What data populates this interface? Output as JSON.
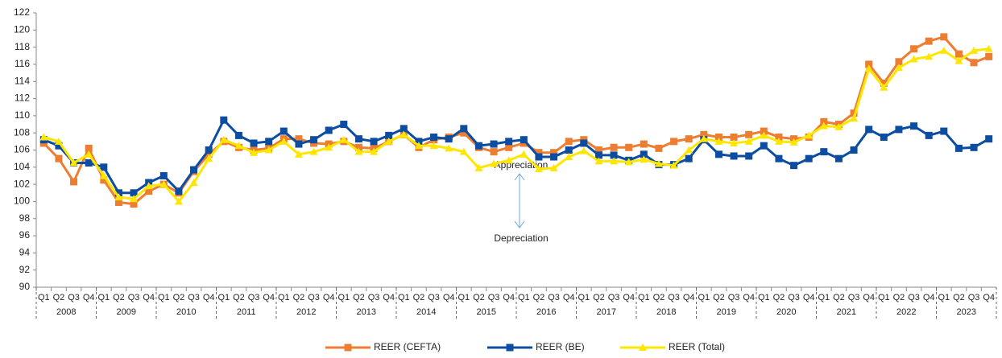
{
  "chart_data": {
    "type": "line",
    "categories": [
      "Q1",
      "Q2",
      "Q3",
      "Q4",
      "Q1",
      "Q2",
      "Q3",
      "Q4",
      "Q1",
      "Q2",
      "Q3",
      "Q4",
      "Q1",
      "Q2",
      "Q3",
      "Q4",
      "Q1",
      "Q2",
      "Q3",
      "Q4",
      "Q1",
      "Q2",
      "Q3",
      "Q4",
      "Q1",
      "Q2",
      "Q3",
      "Q4",
      "Q1",
      "Q2",
      "Q3",
      "Q4",
      "Q1",
      "Q2",
      "Q3",
      "Q4",
      "Q1",
      "Q2",
      "Q3",
      "Q4",
      "Q1",
      "Q2",
      "Q3",
      "Q4",
      "Q1",
      "Q2",
      "Q3",
      "Q4",
      "Q1",
      "Q2",
      "Q3",
      "Q4",
      "Q1",
      "Q2",
      "Q3",
      "Q4",
      "Q1",
      "Q2",
      "Q3",
      "Q4",
      "Q1",
      "Q2",
      "Q3",
      "Q4"
    ],
    "years": [
      "2008",
      "2009",
      "2010",
      "2011",
      "2012",
      "2013",
      "2014",
      "2015",
      "2016",
      "2017",
      "2018",
      "2019",
      "2020",
      "2021",
      "2022",
      "2023"
    ],
    "series": [
      {
        "name": "REER (CEFTA)",
        "color": "#ed7d31",
        "marker": "square",
        "values": [
          106.8,
          105.0,
          102.3,
          106.2,
          102.5,
          99.9,
          99.7,
          101.2,
          102.0,
          101.0,
          103.5,
          105.5,
          107.0,
          106.3,
          106.0,
          106.2,
          107.3,
          107.3,
          106.8,
          106.7,
          107.0,
          106.3,
          106.2,
          107.0,
          107.8,
          106.3,
          107.2,
          107.5,
          108.0,
          106.3,
          105.8,
          106.3,
          106.8,
          105.7,
          105.7,
          107.0,
          107.2,
          106.0,
          106.3,
          106.3,
          106.7,
          106.2,
          107.0,
          107.3,
          107.8,
          107.5,
          107.5,
          107.8,
          108.2,
          107.5,
          107.3,
          107.5,
          109.3,
          109.0,
          110.3,
          116.0,
          113.8,
          116.3,
          117.8,
          118.7,
          119.2,
          117.2,
          116.2,
          116.9
        ]
      },
      {
        "name": "REER (BE)",
        "color": "#0d4da1",
        "marker": "square",
        "values": [
          107.2,
          106.5,
          104.5,
          104.5,
          104.0,
          101.0,
          101.0,
          102.2,
          103.0,
          101.2,
          103.7,
          106.0,
          109.5,
          107.7,
          106.8,
          107.0,
          108.2,
          106.7,
          107.2,
          108.3,
          109.0,
          107.3,
          107.0,
          107.7,
          108.5,
          107.0,
          107.5,
          107.3,
          108.5,
          106.5,
          106.7,
          107.0,
          107.2,
          105.2,
          105.2,
          106.0,
          106.8,
          105.4,
          105.4,
          104.8,
          105.5,
          104.3,
          104.3,
          105.0,
          107.2,
          105.5,
          105.3,
          105.3,
          106.5,
          105.0,
          104.2,
          105.0,
          105.8,
          105.0,
          106.0,
          108.4,
          107.5,
          108.4,
          108.8,
          107.7,
          108.2,
          106.2,
          106.3,
          107.3
        ]
      },
      {
        "name": "REER (Total)",
        "color": "#ffe600",
        "marker": "triangle",
        "values": [
          107.5,
          107.0,
          104.5,
          105.5,
          103.0,
          100.5,
          100.3,
          101.8,
          102.0,
          100.0,
          102.2,
          105.0,
          107.2,
          106.5,
          105.7,
          106.0,
          107.0,
          105.5,
          105.8,
          106.3,
          107.2,
          105.8,
          105.8,
          107.0,
          107.8,
          106.5,
          106.5,
          106.2,
          105.8,
          103.9,
          104.4,
          104.8,
          105.5,
          103.8,
          103.9,
          105.2,
          105.9,
          104.7,
          104.7,
          104.6,
          104.9,
          104.4,
          104.2,
          106.0,
          107.3,
          107.0,
          106.8,
          107.0,
          107.7,
          107.0,
          106.9,
          107.7,
          108.8,
          108.7,
          109.7,
          115.5,
          113.3,
          115.6,
          116.6,
          116.9,
          117.6,
          116.4,
          117.6,
          117.8
        ]
      }
    ],
    "annotations": [
      "Appreciation",
      "Depreciation"
    ],
    "ylim": [
      90,
      122
    ],
    "yticks": [
      90,
      92,
      94,
      96,
      98,
      100,
      102,
      104,
      106,
      108,
      110,
      112,
      114,
      116,
      118,
      120,
      122
    ],
    "grid": false,
    "legend": "bottom"
  }
}
